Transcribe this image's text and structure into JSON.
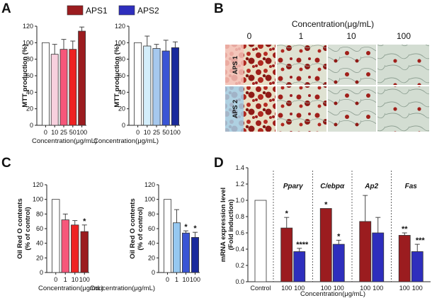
{
  "panel_labels": [
    "A",
    "B",
    "C",
    "D"
  ],
  "legend": {
    "items": [
      {
        "name": "APS1",
        "color": "#9b1c1f"
      },
      {
        "name": "APS2",
        "color": "#2e2ebd"
      }
    ]
  },
  "image_grid": {
    "title": "Concentration(μg/mL)",
    "columns": [
      "0",
      "1",
      "10",
      "100"
    ],
    "rows": [
      {
        "label": "APS 1",
        "color": "#f6c2b8"
      },
      {
        "label": "APS 2",
        "color": "#a5cfe6"
      }
    ]
  },
  "chart_data": [
    {
      "type": "bar",
      "id": "A-APS1",
      "categories": [
        "0",
        "10",
        "25",
        "50",
        "100"
      ],
      "values": [
        100,
        86,
        92,
        92,
        114
      ],
      "errors": [
        0,
        12,
        12,
        10,
        5
      ],
      "colors": [
        "#ffffff",
        "#f8d0de",
        "#f6577a",
        "#ee2222",
        "#9b1c1f"
      ],
      "ylabel": "MTT production (%)",
      "xlabel": "Concentration(μg/mL)",
      "ylim": [
        0,
        120
      ],
      "yticks": [
        0,
        20,
        40,
        60,
        80,
        100,
        120
      ],
      "stars": [
        "",
        "",
        "",
        "",
        ""
      ]
    },
    {
      "type": "bar",
      "id": "A-APS2",
      "categories": [
        "0",
        "10",
        "25",
        "50",
        "100"
      ],
      "values": [
        100,
        96,
        93,
        90,
        94
      ],
      "errors": [
        0,
        12,
        5,
        13,
        7
      ],
      "colors": [
        "#ffffff",
        "#d4eefb",
        "#a6c8ee",
        "#3a55d5",
        "#1a2a9c"
      ],
      "ylabel": "MTT production (%)",
      "xlabel": "Concentration(μg/mL)",
      "ylim": [
        0,
        120
      ],
      "yticks": [
        0,
        20,
        40,
        60,
        80,
        100,
        120
      ],
      "stars": [
        "",
        "",
        "",
        "",
        ""
      ]
    },
    {
      "type": "bar",
      "id": "C-APS1",
      "categories": [
        "0",
        "1",
        "10",
        "100"
      ],
      "values": [
        100,
        72,
        65,
        56
      ],
      "errors": [
        0,
        8,
        6,
        9
      ],
      "colors": [
        "#ffffff",
        "#f6577a",
        "#ee2222",
        "#9b1c1f"
      ],
      "ylabel": "Oil Red  O contents",
      "ylabel2": "(% of control)",
      "xlabel": "Concentration(μg/mL)",
      "ylim": [
        0,
        120
      ],
      "yticks": [
        0,
        20,
        40,
        60,
        80,
        100,
        120
      ],
      "stars": [
        "",
        "",
        "",
        "*"
      ]
    },
    {
      "type": "bar",
      "id": "C-APS2",
      "categories": [
        "0",
        "1",
        "10",
        "100"
      ],
      "values": [
        100,
        68,
        54,
        48
      ],
      "errors": [
        0,
        18,
        3,
        7
      ],
      "colors": [
        "#ffffff",
        "#96c8f0",
        "#3a55d5",
        "#1a2a9c"
      ],
      "ylabel": "Oil Red  O contents",
      "ylabel2": "(% of control)",
      "xlabel": "Concentration(μg/mL)",
      "ylim": [
        0,
        120
      ],
      "yticks": [
        0,
        20,
        40,
        60,
        80,
        100,
        120
      ],
      "stars": [
        "",
        "",
        "*",
        "*"
      ]
    },
    {
      "type": "bar",
      "id": "D",
      "groups": [
        {
          "gene": "",
          "label": "Control",
          "bars": [
            {
              "value": 1.0,
              "error": 0,
              "color": "#ffffff",
              "star": "",
              "xlabel": "Control"
            }
          ]
        },
        {
          "gene": "Pparγ",
          "bars": [
            {
              "value": 0.66,
              "error": 0.13,
              "color": "#9b1c1f",
              "star": "*",
              "xlabel": "100"
            },
            {
              "value": 0.37,
              "error": 0.04,
              "color": "#2e2ebd",
              "star": "****",
              "xlabel": "100"
            }
          ]
        },
        {
          "gene": "C/ebpα",
          "bars": [
            {
              "value": 0.9,
              "error": 0,
              "color": "#9b1c1f",
              "star": "*",
              "xlabel": "100"
            },
            {
              "value": 0.46,
              "error": 0.05,
              "color": "#2e2ebd",
              "star": "*",
              "xlabel": "100"
            }
          ]
        },
        {
          "gene": "Ap2",
          "bars": [
            {
              "value": 0.74,
              "error": 0.32,
              "color": "#9b1c1f",
              "star": "",
              "xlabel": "100"
            },
            {
              "value": 0.6,
              "error": 0.19,
              "color": "#2e2ebd",
              "star": "",
              "xlabel": "100"
            }
          ]
        },
        {
          "gene": "Fas",
          "bars": [
            {
              "value": 0.57,
              "error": 0.03,
              "color": "#9b1c1f",
              "star": "**",
              "xlabel": "100"
            },
            {
              "value": 0.37,
              "error": 0.09,
              "color": "#2e2ebd",
              "star": "***",
              "xlabel": "100"
            }
          ]
        }
      ],
      "ylabel": "mRNA expression level",
      "ylabel2": "(Fold induction)",
      "xlabel": "Concentration(μg/mL)",
      "ylim": [
        0,
        1.4
      ],
      "yticks": [
        0.0,
        0.2,
        0.4,
        0.6,
        0.8,
        1.0,
        1.2,
        1.4
      ]
    }
  ]
}
